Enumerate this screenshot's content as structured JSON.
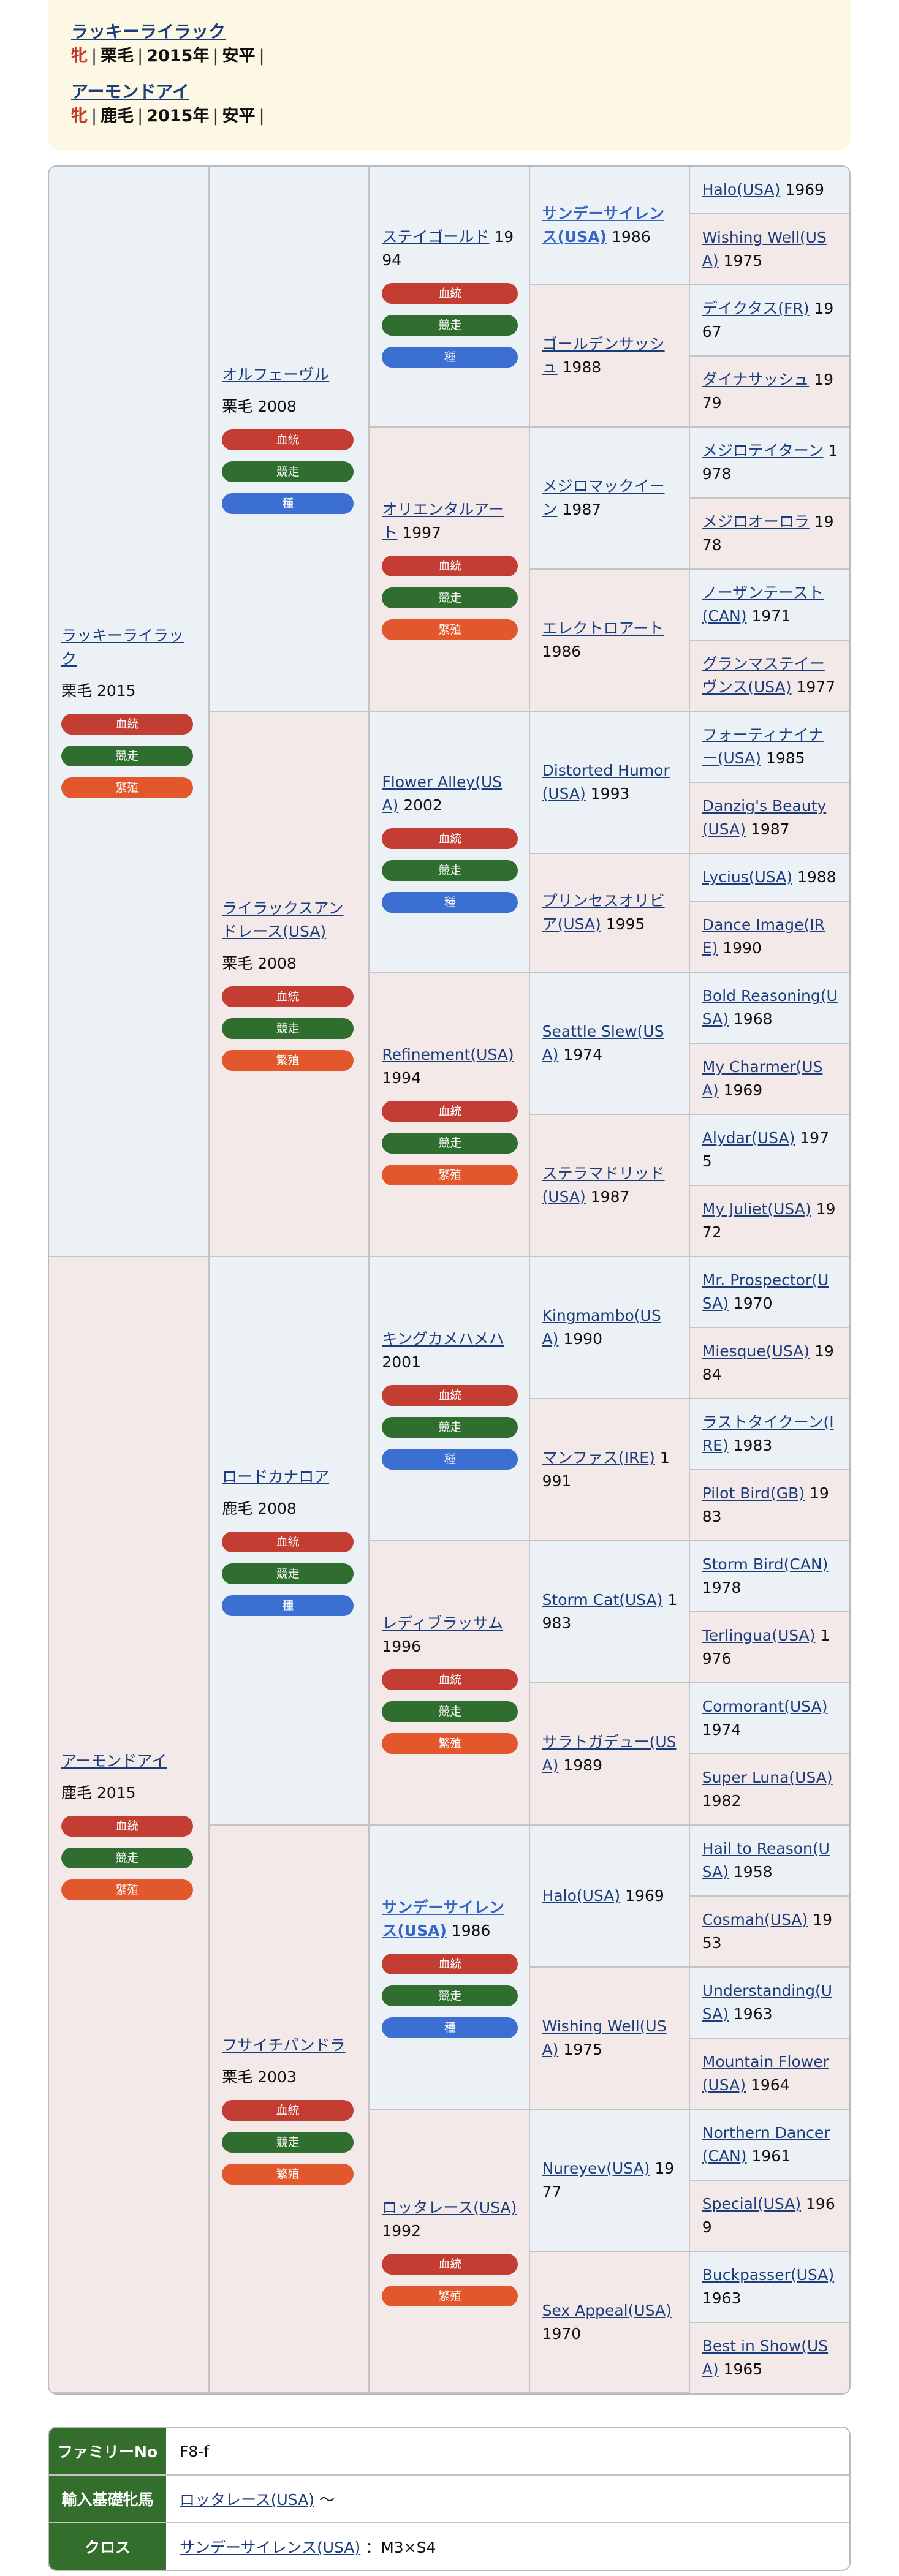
{
  "header": {
    "horses": [
      {
        "name": "ラッキーライラック",
        "sex": "牝",
        "coat": "栗毛",
        "year": "2015年",
        "farm": "安平"
      },
      {
        "name": "アーモンドアイ",
        "sex": "牝",
        "coat": "鹿毛",
        "year": "2015年",
        "farm": "安平"
      }
    ],
    "separator": "|"
  },
  "badge_labels": {
    "blood": "血統",
    "race": "競走",
    "sire": "種",
    "mare": "繁殖"
  },
  "colors": {
    "sire_cell": "#ecf1f5",
    "dam_cell": "#f4e9e9",
    "blood": "#c43d32",
    "race": "#2f6e2e",
    "sire": "#3b6fd2",
    "mare": "#e2582c",
    "header_bg": "#fdf8e3",
    "info_th": "#336e2d"
  },
  "pedigree": {
    "gen1": [
      {
        "name": "ラッキーライラック",
        "detail": "栗毛 2015",
        "badges": [
          "blood",
          "race",
          "mare"
        ]
      },
      {
        "name": "アーモンドアイ",
        "detail": "鹿毛 2015",
        "badges": [
          "blood",
          "race",
          "mare"
        ]
      }
    ],
    "gen2": [
      {
        "name": "オルフェーヴル",
        "detail": "栗毛 2008",
        "badges": [
          "blood",
          "race",
          "sire"
        ]
      },
      {
        "name": "ライラックスアンドレース(USA)",
        "detail": "栗毛 2008",
        "badges": [
          "blood",
          "race",
          "mare"
        ]
      },
      {
        "name": "ロードカナロア",
        "detail": "鹿毛 2008",
        "badges": [
          "blood",
          "race",
          "sire"
        ]
      },
      {
        "name": "フサイチパンドラ",
        "detail": "栗毛 2003",
        "badges": [
          "blood",
          "race",
          "mare"
        ]
      }
    ],
    "gen3": [
      {
        "name": "ステイゴールド",
        "year": "1994",
        "badges": [
          "blood",
          "race",
          "sire"
        ]
      },
      {
        "name": "オリエンタルアート",
        "year": "1997",
        "badges": [
          "blood",
          "race",
          "mare"
        ]
      },
      {
        "name": "Flower Alley(USA)",
        "year": "2002",
        "badges": [
          "blood",
          "race",
          "sire"
        ]
      },
      {
        "name": "Refinement(USA)",
        "year": "1994",
        "badges": [
          "blood",
          "race",
          "mare"
        ]
      },
      {
        "name": "キングカメハメハ",
        "year": "2001",
        "badges": [
          "blood",
          "race",
          "sire"
        ]
      },
      {
        "name": "レディブラッサム",
        "year": "1996",
        "badges": [
          "blood",
          "race",
          "mare"
        ]
      },
      {
        "name": "サンデーサイレンス(USA)",
        "year": "1986",
        "badges": [
          "blood",
          "race",
          "sire"
        ],
        "bold": true
      },
      {
        "name": "ロッタレース(USA)",
        "year": "1992",
        "badges": [
          "blood",
          "mare"
        ]
      }
    ],
    "gen4": [
      {
        "name": "サンデーサイレンス(USA)",
        "year": "1986",
        "bold": true
      },
      {
        "name": "ゴールデンサッシュ",
        "year": "1988"
      },
      {
        "name": "メジロマックイーン",
        "year": "1987"
      },
      {
        "name": "エレクトロアート",
        "year": "1986"
      },
      {
        "name": "Distorted Humor(USA)",
        "year": "1993"
      },
      {
        "name": "プリンセスオリビア(USA)",
        "year": "1995"
      },
      {
        "name": "Seattle Slew(USA)",
        "year": "1974"
      },
      {
        "name": "ステラマドリッド(USA)",
        "year": "1987"
      },
      {
        "name": "Kingmambo(USA)",
        "year": "1990"
      },
      {
        "name": "マンファス(IRE)",
        "year": "1991"
      },
      {
        "name": "Storm Cat(USA)",
        "year": "1983"
      },
      {
        "name": "サラトガデュー(USA)",
        "year": "1989"
      },
      {
        "name": "Halo(USA)",
        "year": "1969"
      },
      {
        "name": "Wishing Well(USA)",
        "year": "1975"
      },
      {
        "name": "Nureyev(USA)",
        "year": "1977"
      },
      {
        "name": "Sex Appeal(USA)",
        "year": "1970"
      }
    ],
    "gen5": [
      {
        "name": "Halo(USA)",
        "year": "1969"
      },
      {
        "name": "Wishing Well(USA)",
        "year": "1975"
      },
      {
        "name": "デイクタス(FR)",
        "year": "1967"
      },
      {
        "name": "ダイナサッシュ",
        "year": "1979"
      },
      {
        "name": "メジロテイターン",
        "year": "1978"
      },
      {
        "name": "メジロオーロラ",
        "year": "1978"
      },
      {
        "name": "ノーザンテースト(CAN)",
        "year": "1971"
      },
      {
        "name": "グランマステイーヴンス(USA)",
        "year": "1977"
      },
      {
        "name": "フォーティナイナー(USA)",
        "year": "1985"
      },
      {
        "name": "Danzig's Beauty(USA)",
        "year": "1987"
      },
      {
        "name": "Lycius(USA)",
        "year": "1988"
      },
      {
        "name": "Dance Image(IRE)",
        "year": "1990"
      },
      {
        "name": "Bold Reasoning(USA)",
        "year": "1968"
      },
      {
        "name": "My Charmer(USA)",
        "year": "1969"
      },
      {
        "name": "Alydar(USA)",
        "year": "1975"
      },
      {
        "name": "My Juliet(USA)",
        "year": "1972"
      },
      {
        "name": "Mr. Prospector(USA)",
        "year": "1970"
      },
      {
        "name": "Miesque(USA)",
        "year": "1984"
      },
      {
        "name": "ラストタイクーン(IRE)",
        "year": "1983"
      },
      {
        "name": "Pilot Bird(GB)",
        "year": "1983"
      },
      {
        "name": "Storm Bird(CAN)",
        "year": "1978"
      },
      {
        "name": "Terlingua(USA)",
        "year": "1976"
      },
      {
        "name": "Cormorant(USA)",
        "year": "1974"
      },
      {
        "name": "Super Luna(USA)",
        "year": "1982"
      },
      {
        "name": "Hail to Reason(USA)",
        "year": "1958"
      },
      {
        "name": "Cosmah(USA)",
        "year": "1953"
      },
      {
        "name": "Understanding(USA)",
        "year": "1963"
      },
      {
        "name": "Mountain Flower(USA)",
        "year": "1964"
      },
      {
        "name": "Northern Dancer(CAN)",
        "year": "1961"
      },
      {
        "name": "Special(USA)",
        "year": "1969"
      },
      {
        "name": "Buckpasser(USA)",
        "year": "1963"
      },
      {
        "name": "Best in Show(USA)",
        "year": "1965"
      }
    ]
  },
  "info": {
    "family_label": "ファミリーNo",
    "family_value": "F8-f",
    "import_label": "輸入基礎牝馬",
    "import_horse": "ロッタレース(USA)",
    "import_suffix": "〜",
    "cross_label": "クロス",
    "cross_horse": "サンデーサイレンス(USA)",
    "cross_value": "：M3×S4"
  }
}
